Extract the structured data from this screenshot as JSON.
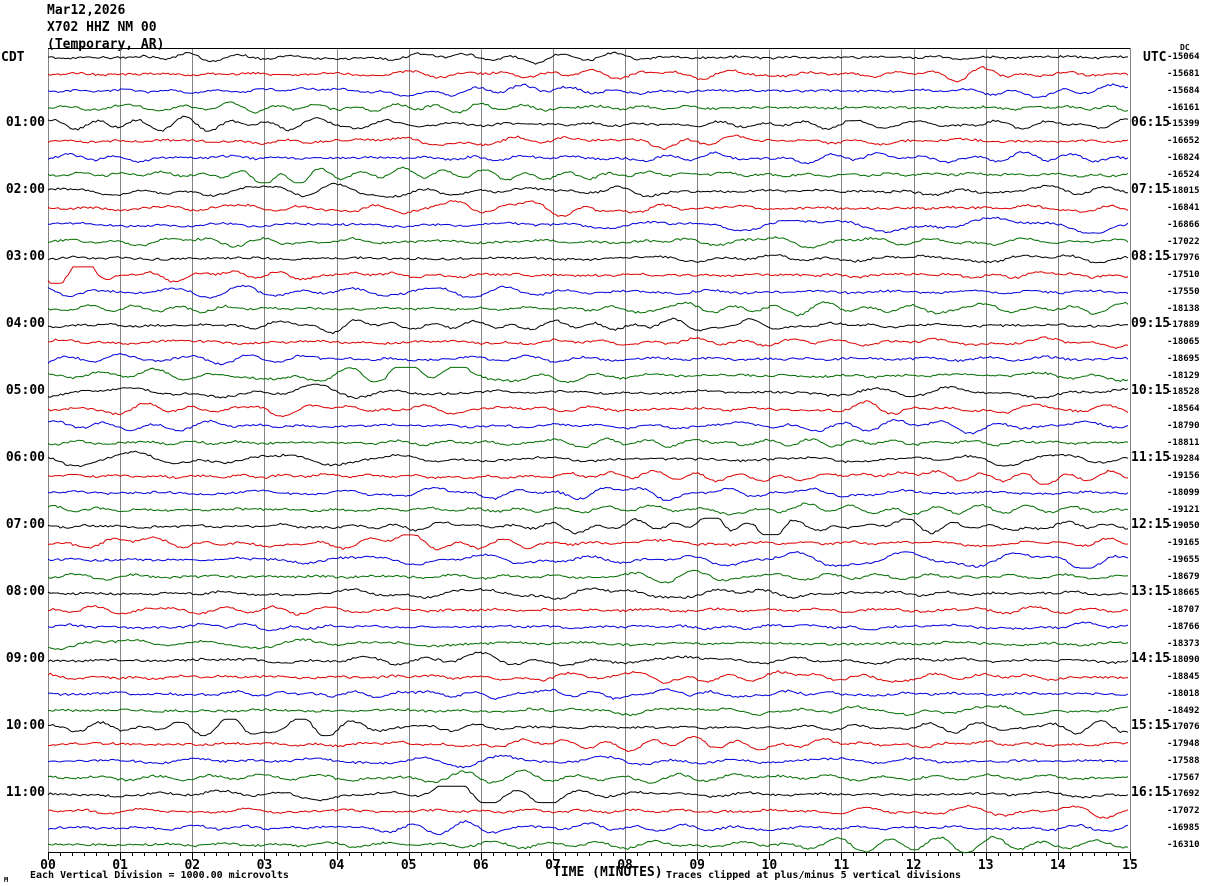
{
  "header": {
    "date_line": "Mar12,2026",
    "station_line": "X702 HHZ NM 00",
    "network_line": "(Temporary, AR)",
    "left_timezone": "CDT",
    "right_timezone": "UTC",
    "dc_column_label": "DC"
  },
  "footer": {
    "scale_note": "Each Vertical Division = 1000.00 microvolts",
    "xaxis_title": "TIME (MINUTES)",
    "clip_note": "Traces clipped at plus/minus 5 vertical divisions",
    "watermark": "M"
  },
  "x_axis": {
    "tick_labels": [
      "00",
      "01",
      "02",
      "03",
      "04",
      "05",
      "06",
      "07",
      "08",
      "09",
      "10",
      "11",
      "12",
      "13",
      "14",
      "15"
    ],
    "minor_ticks_per_minute": 6
  },
  "left_hour_labels": [
    "01:00",
    "02:00",
    "03:00",
    "04:00",
    "05:00",
    "06:00",
    "07:00",
    "08:00",
    "09:00",
    "10:00",
    "11:00"
  ],
  "right_hour_labels": [
    "06:15",
    "07:15",
    "08:15",
    "09:15",
    "10:15",
    "11:15",
    "12:15",
    "13:15",
    "14:15",
    "15:15",
    "16:15"
  ],
  "dc_values": [
    "-15064",
    "-15681",
    "-15684",
    "-16161",
    "-15399",
    "-16652",
    "-16824",
    "-16524",
    "-18015",
    "-16841",
    "-16866",
    "-17022",
    "-17976",
    "-17510",
    "-17550",
    "-18138",
    "-17889",
    "-18065",
    "-18695",
    "-18129",
    "-18528",
    "-18564",
    "-18790",
    "-18811",
    "-19284",
    "-19156",
    "-18099",
    "-19121",
    "-19050",
    "-19165",
    "-19655",
    "-18679",
    "-18665",
    "-18707",
    "-18766",
    "-18373",
    "-18090",
    "-18845",
    "-18018",
    "-18492",
    "-17076",
    "-17948",
    "-17588",
    "-17567",
    "-17692",
    "-17072",
    "-16985",
    "-16310"
  ],
  "colors": {
    "trace_cycle": [
      "#000000",
      "#dd0000",
      "#0000dd",
      "#006e00"
    ],
    "grid": "#848484",
    "frame": "#000000",
    "background": "#ffffff",
    "text": "#000000"
  },
  "chart_data": {
    "type": "line",
    "subtype": "seismogram-helicorder",
    "title": "Mar12,2026 X702 HHZ NM 00 (Temporary, AR)",
    "xlabel": "TIME (MINUTES)",
    "x_range_minutes": [
      0,
      15
    ],
    "x_tick_labels": [
      "00",
      "01",
      "02",
      "03",
      "04",
      "05",
      "06",
      "07",
      "08",
      "09",
      "10",
      "11",
      "12",
      "13",
      "14",
      "15"
    ],
    "rows": 48,
    "row_duration_minutes": 15,
    "traces_per_hour_group": 4,
    "trace_color_cycle": [
      "black",
      "red",
      "blue",
      "green"
    ],
    "hour_marks_cdt": [
      "01:00",
      "02:00",
      "03:00",
      "04:00",
      "05:00",
      "06:00",
      "07:00",
      "08:00",
      "09:00",
      "10:00",
      "11:00"
    ],
    "hour_marks_utc": [
      "06:15",
      "07:15",
      "08:15",
      "09:15",
      "10:15",
      "11:15",
      "12:15",
      "13:15",
      "14:15",
      "15:15",
      "16:15"
    ],
    "hour_mark_row_interval": 4,
    "dc_offsets_microvolts": [
      -15064,
      -15681,
      -15684,
      -16161,
      -15399,
      -16652,
      -16824,
      -16524,
      -18015,
      -16841,
      -16866,
      -17022,
      -17976,
      -17510,
      -17550,
      -18138,
      -17889,
      -18065,
      -18695,
      -18129,
      -18528,
      -18564,
      -18790,
      -18811,
      -19284,
      -19156,
      -18099,
      -19121,
      -19050,
      -19165,
      -19655,
      -18679,
      -18665,
      -18707,
      -18766,
      -18373,
      -18090,
      -18845,
      -18018,
      -18492,
      -17076,
      -17948,
      -17588,
      -17567,
      -17692,
      -17072,
      -16985,
      -16310
    ],
    "amplitude_scale": "Each Vertical Division = 1000.00 microvolts",
    "clipping": "Traces clipped at plus/minus 5 vertical divisions",
    "series_note": "48 rows of continuous ambient seismic noise; individual waveform sample values are not resolvable from the image"
  }
}
